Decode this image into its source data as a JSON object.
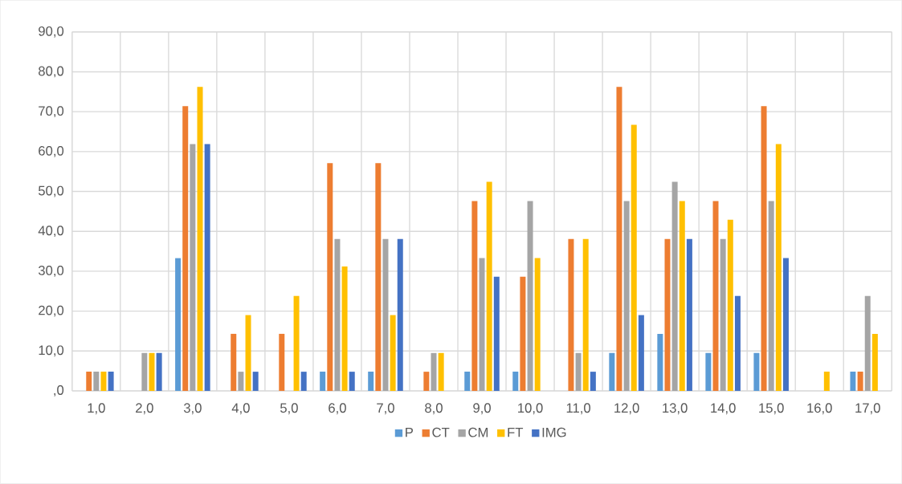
{
  "chart_data": {
    "type": "bar",
    "categories": [
      "1,0",
      "2,0",
      "3,0",
      "4,0",
      "5,0",
      "6,0",
      "7,0",
      "8,0",
      "9,0",
      "10,0",
      "11,0",
      "12,0",
      "13,0",
      "14,0",
      "15,0",
      "16,0",
      "17,0"
    ],
    "series": [
      {
        "name": "P",
        "color": "#5b9bd5",
        "values": [
          0,
          0,
          33.3,
          0,
          0,
          4.8,
          4.8,
          0,
          4.8,
          4.8,
          0,
          9.5,
          14.3,
          9.5,
          9.5,
          0,
          4.8
        ]
      },
      {
        "name": "CT",
        "color": "#ed7d31",
        "values": [
          4.8,
          0,
          71.4,
          14.3,
          14.3,
          57.1,
          57.1,
          4.8,
          47.6,
          28.6,
          38.1,
          76.2,
          38.1,
          47.6,
          71.4,
          0,
          4.8
        ]
      },
      {
        "name": "CM",
        "color": "#a5a5a5",
        "values": [
          4.8,
          9.5,
          61.9,
          4.8,
          0,
          38.1,
          38.1,
          9.5,
          33.3,
          47.6,
          9.5,
          47.6,
          52.4,
          38.1,
          47.6,
          0,
          23.8
        ]
      },
      {
        "name": "FT",
        "color": "#ffc000",
        "values": [
          4.8,
          9.5,
          76.2,
          19.0,
          23.8,
          31.2,
          19.0,
          9.5,
          52.4,
          33.3,
          38.1,
          66.7,
          47.6,
          42.9,
          61.9,
          4.8,
          14.3
        ]
      },
      {
        "name": "IMG",
        "color": "#4472c4",
        "values": [
          4.8,
          9.5,
          61.9,
          4.8,
          4.8,
          4.8,
          38.1,
          0,
          28.6,
          0,
          4.8,
          19.0,
          38.1,
          23.8,
          33.3,
          0,
          0
        ]
      }
    ],
    "ylim": [
      0,
      90
    ],
    "yticks": [
      {
        "value": 0,
        "label": ",0"
      },
      {
        "value": 10,
        "label": "10,0"
      },
      {
        "value": 20,
        "label": "20,0"
      },
      {
        "value": 30,
        "label": "30,0"
      },
      {
        "value": 40,
        "label": "40,0"
      },
      {
        "value": 50,
        "label": "50,0"
      },
      {
        "value": 60,
        "label": "60,0"
      },
      {
        "value": 70,
        "label": "70,0"
      },
      {
        "value": 80,
        "label": "80,0"
      },
      {
        "value": 90,
        "label": "90,0"
      }
    ],
    "grid": true,
    "legend": "bottom"
  }
}
